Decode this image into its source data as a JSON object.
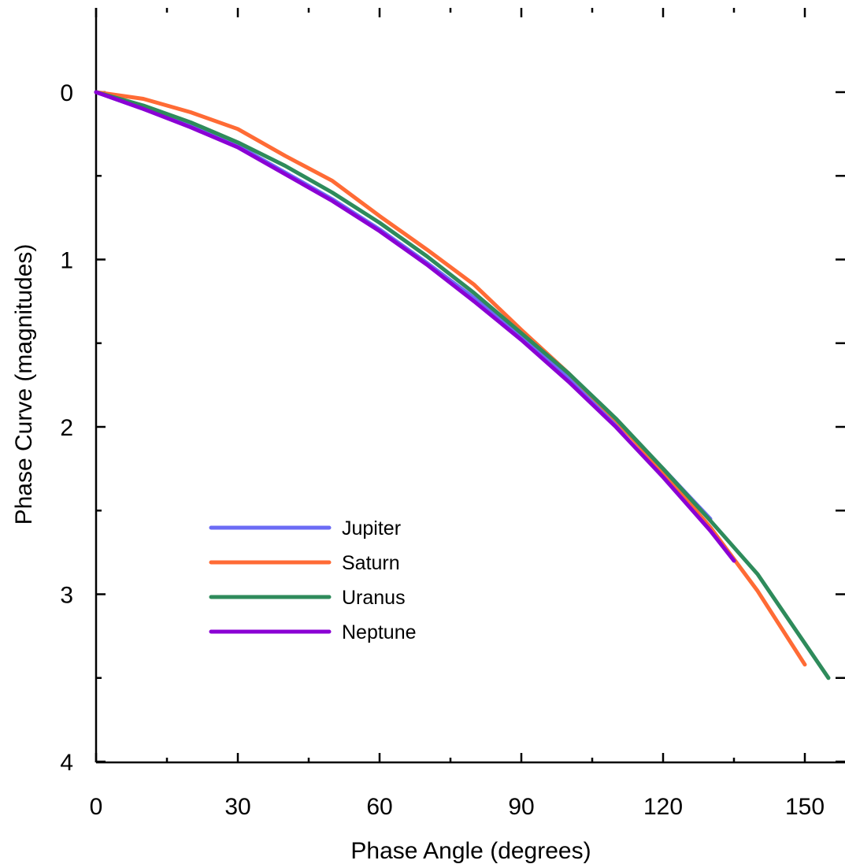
{
  "chart_data": {
    "type": "line",
    "xlabel": "Phase Angle (degrees)",
    "ylabel": "Phase Curve (magnitudes)",
    "xlim": [
      0,
      160
    ],
    "ylim": [
      -0.5,
      4
    ],
    "y_inverted": true,
    "x_ticks": [
      0,
      30,
      60,
      90,
      120,
      150
    ],
    "x_minor_ticks": [
      15,
      45,
      75,
      105,
      135
    ],
    "y_ticks": [
      0,
      1,
      2,
      3,
      4
    ],
    "y_minor_ticks": [
      0.5,
      1.5,
      2.5,
      3.5
    ],
    "grid": false,
    "legend_position": "lower-left",
    "series": [
      {
        "name": "Jupiter",
        "color": "#6B6BF5",
        "x": [
          0,
          10,
          20,
          30,
          40,
          50,
          60,
          70,
          80,
          90,
          100,
          110,
          120,
          130
        ],
        "y": [
          0,
          0.1,
          0.2,
          0.32,
          0.48,
          0.64,
          0.82,
          1.02,
          1.23,
          1.46,
          1.7,
          1.97,
          2.25,
          2.55
        ]
      },
      {
        "name": "Saturn",
        "color": "#FF6B35",
        "x": [
          0,
          10,
          20,
          30,
          40,
          50,
          60,
          70,
          80,
          90,
          100,
          110,
          120,
          130,
          140,
          150
        ],
        "y": [
          0,
          0.04,
          0.12,
          0.22,
          0.38,
          0.53,
          0.74,
          0.94,
          1.15,
          1.42,
          1.68,
          1.96,
          2.27,
          2.6,
          2.98,
          3.42
        ]
      },
      {
        "name": "Uranus",
        "color": "#2E8B5B",
        "x": [
          0,
          10,
          20,
          30,
          40,
          50,
          60,
          70,
          80,
          90,
          100,
          110,
          120,
          130,
          140,
          155
        ],
        "y": [
          0,
          0.08,
          0.18,
          0.3,
          0.44,
          0.6,
          0.78,
          0.98,
          1.2,
          1.44,
          1.68,
          1.95,
          2.25,
          2.56,
          2.88,
          3.5
        ]
      },
      {
        "name": "Neptune",
        "color": "#8A00D4",
        "x": [
          0,
          10,
          20,
          30,
          40,
          50,
          60,
          70,
          80,
          90,
          100,
          110,
          120,
          130,
          135
        ],
        "y": [
          0,
          0.1,
          0.21,
          0.33,
          0.49,
          0.65,
          0.83,
          1.03,
          1.25,
          1.48,
          1.73,
          2.0,
          2.3,
          2.62,
          2.8
        ]
      }
    ]
  }
}
